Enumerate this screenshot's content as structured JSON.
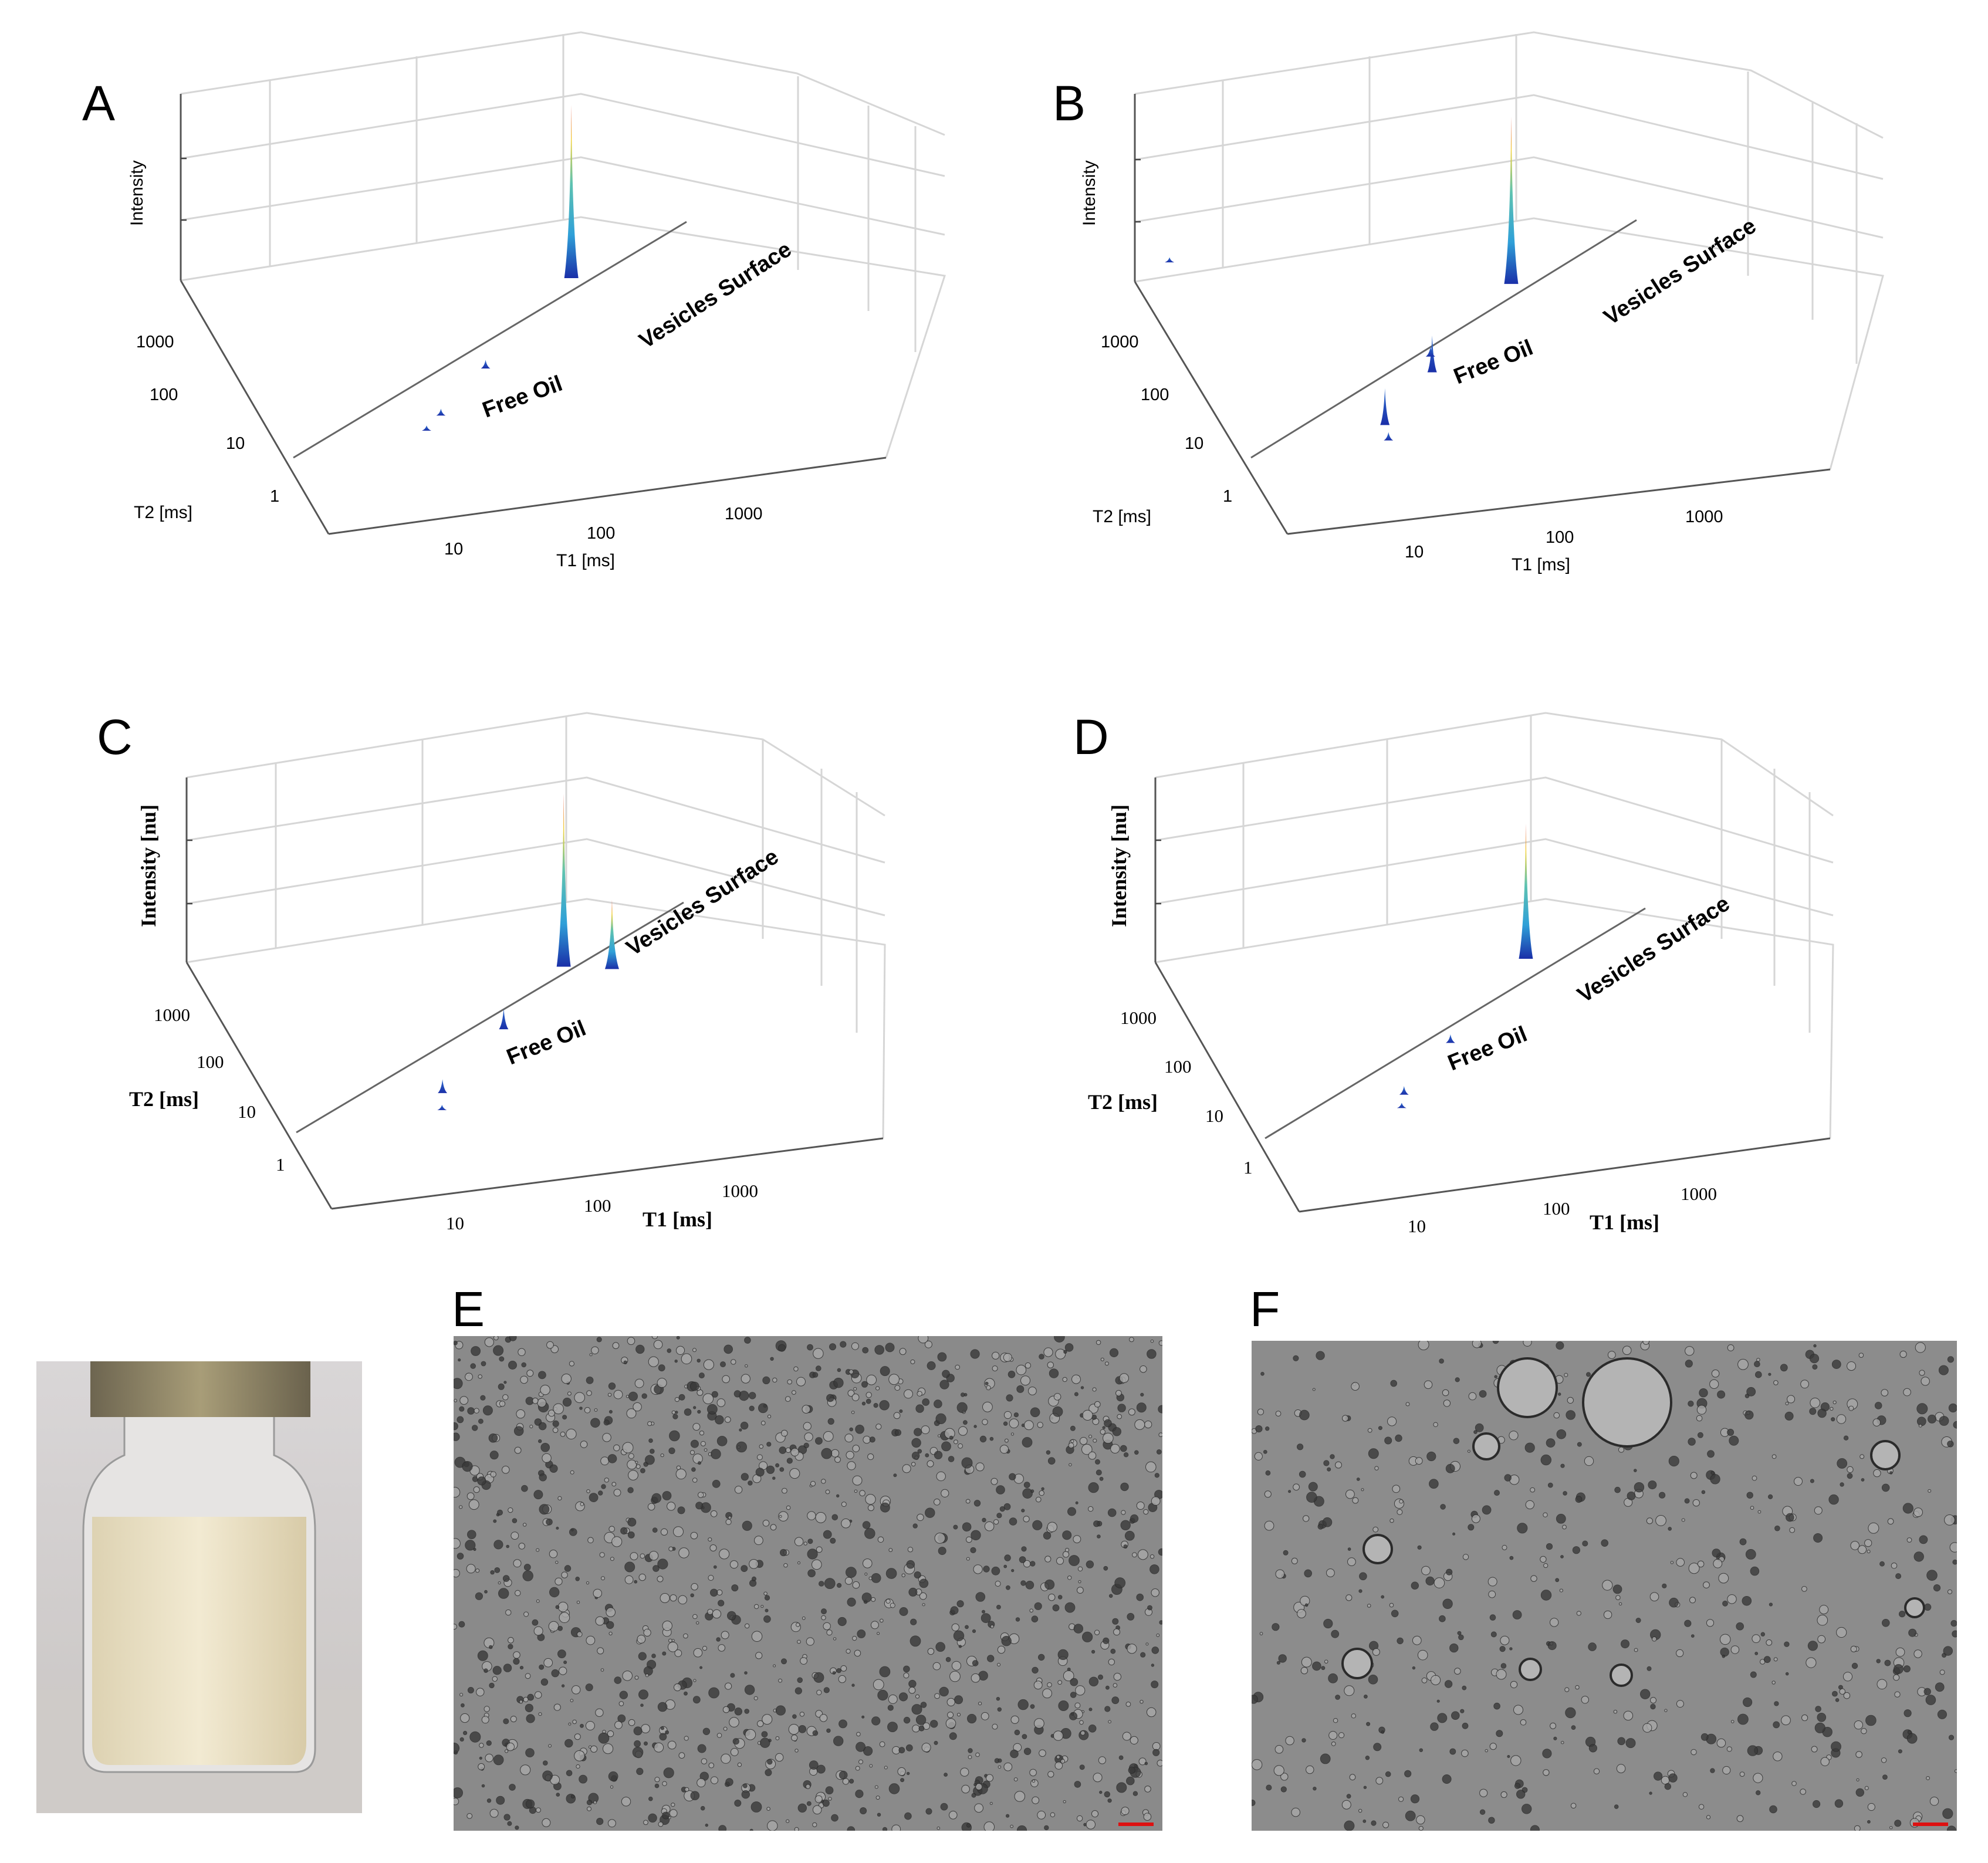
{
  "chart_data": [
    {
      "panel": "A",
      "type": "3d-surface",
      "zlabel": "Intensity",
      "ylabel": "T2 [ms]",
      "xlabel": "T1 [ms]",
      "x_ticks": [
        "10",
        "100",
        "1000"
      ],
      "y_ticks": [
        "1000",
        "100",
        "10",
        "1"
      ],
      "x_scale": "log",
      "y_scale": "log",
      "annotations": [
        "Free Oil",
        "Vesicles Surface"
      ],
      "peaks": [
        {
          "t1": 300,
          "t2": 300,
          "intensity": 1.0
        },
        {
          "t1": 40,
          "t2": 40,
          "intensity": 0.05
        },
        {
          "t1": 14,
          "t2": 14,
          "intensity": 0.04
        },
        {
          "t1": 10,
          "t2": 10,
          "intensity": 0.03
        }
      ],
      "style": "sans"
    },
    {
      "panel": "B",
      "type": "3d-surface",
      "zlabel": "Intensity",
      "ylabel": "T2 [ms]",
      "xlabel": "T1 [ms]",
      "x_ticks": [
        "10",
        "100",
        "1000"
      ],
      "y_ticks": [
        "1000",
        "100",
        "10",
        "1"
      ],
      "x_scale": "log",
      "y_scale": "log",
      "annotations": [
        "Free Oil",
        "Vesicles Surface"
      ],
      "peaks": [
        {
          "t1": 300,
          "t2": 300,
          "intensity": 1.0
        },
        {
          "t1": 40,
          "t2": 40,
          "intensity": 0.22
        },
        {
          "t1": 45,
          "t2": 60,
          "intensity": 0.06
        },
        {
          "t1": 12,
          "t2": 12,
          "intensity": 0.22
        },
        {
          "t1": 11,
          "t2": 8,
          "intensity": 0.05
        },
        {
          "t1": 2,
          "t2": 1500,
          "intensity": 0.03
        }
      ],
      "style": "sans"
    },
    {
      "panel": "C",
      "type": "3d-surface",
      "zlabel": "Intensity [nu]",
      "ylabel": "T2 [ms]",
      "xlabel": "T1 [ms]",
      "x_ticks": [
        "10",
        "100",
        "1000"
      ],
      "y_ticks": [
        "1000",
        "100",
        "10",
        "1"
      ],
      "x_scale": "log",
      "y_scale": "log",
      "annotations": [
        "Free Oil",
        "Vesicles Surface"
      ],
      "peaks": [
        {
          "t1": 250,
          "t2": 250,
          "intensity": 1.0
        },
        {
          "t1": 500,
          "t2": 200,
          "intensity": 0.4
        },
        {
          "t1": 60,
          "t2": 60,
          "intensity": 0.12
        },
        {
          "t1": 14,
          "t2": 14,
          "intensity": 0.08
        },
        {
          "t1": 12,
          "t2": 9,
          "intensity": 0.03
        }
      ],
      "style": "serif"
    },
    {
      "panel": "D",
      "type": "3d-surface",
      "zlabel": "Intensity [nu]",
      "ylabel": "T2 [ms]",
      "xlabel": "T1 [ms]",
      "x_ticks": [
        "10",
        "100",
        "1000"
      ],
      "y_ticks": [
        "1000",
        "100",
        "10",
        "1"
      ],
      "x_scale": "log",
      "y_scale": "log",
      "annotations": [
        "Free Oil",
        "Vesicles Surface"
      ],
      "peaks": [
        {
          "t1": 300,
          "t2": 300,
          "intensity": 0.78
        },
        {
          "t1": 45,
          "t2": 45,
          "intensity": 0.05
        },
        {
          "t1": 14,
          "t2": 14,
          "intensity": 0.05
        },
        {
          "t1": 12,
          "t2": 10,
          "intensity": 0.03
        }
      ],
      "style": "serif"
    }
  ],
  "images": {
    "E": {
      "label": "E"
    },
    "F": {
      "label": "F"
    }
  },
  "colors": {
    "jet_low": "#1a2fa8",
    "jet_mid": "#2fa0d8",
    "jet_high": "#f3d23a",
    "jet_top": "#e2352b",
    "grid": "#d6d6d6",
    "micro_bg": "#8a8a8a",
    "liquid": "#efe6cc",
    "cap": "#8d8261"
  }
}
